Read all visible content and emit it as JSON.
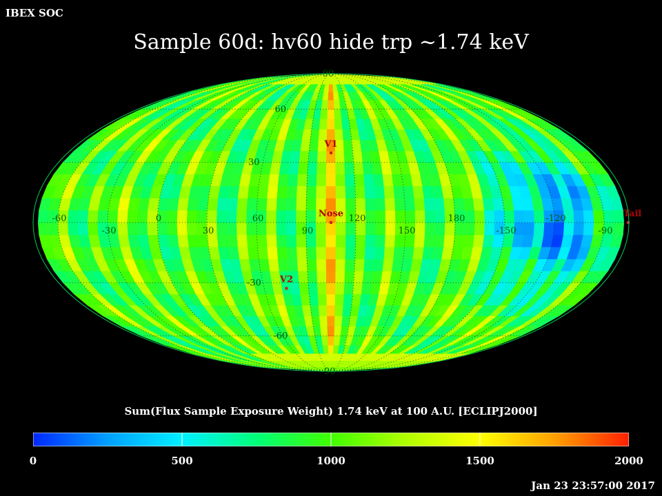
{
  "header": {
    "org": "IBEX SOC",
    "title": "Sample 60d: hv60 hide trp ~1.74 keV"
  },
  "colorbar": {
    "title": "Sum(Flux Sample Exposure Weight)  1.74 keV at 100 A.U. [ECLIPJ2000]",
    "range": [
      0,
      2000
    ],
    "ticks": [
      "0",
      "500",
      "1000",
      "1500",
      "2000"
    ],
    "stops": [
      "#0028ff",
      "#00a0ff",
      "#00f0ff",
      "#00ff78",
      "#40ff00",
      "#b0ff00",
      "#ffff00",
      "#ffa000",
      "#ff2000"
    ]
  },
  "timestamp": "Jan 23 23:57:00 2017",
  "map": {
    "projection": "mollweide",
    "center_longitude": 105,
    "grid": true,
    "longitude_labels": [
      "60",
      "30",
      "0",
      "-30",
      "-60",
      "-90",
      "-120",
      "-150",
      "180",
      "150",
      "120",
      "90"
    ],
    "longitude_label_values": [
      60,
      30,
      0,
      -30,
      -60,
      -90,
      -120,
      -150,
      180,
      150,
      120,
      90
    ],
    "latitude_labels": [
      "90",
      "60",
      "30",
      "-30",
      "-60",
      "-90"
    ],
    "latitude_label_values": [
      90,
      60,
      30,
      -30,
      -60,
      -90
    ],
    "markers": [
      {
        "label": "Nose",
        "lon": 105,
        "lat": 0,
        "color": "#d02020"
      },
      {
        "label": "V1",
        "lon": 105,
        "lat": 35,
        "color": "#d02020"
      },
      {
        "label": "V2",
        "lon": 75,
        "lat": -33,
        "color": "#d02020"
      },
      {
        "label": "Tail",
        "lon": 285,
        "lat": 0,
        "color": "#d02020"
      }
    ],
    "label_colors": {
      "grid_text": "#005a00",
      "marker_text": "#b00000"
    }
  }
}
